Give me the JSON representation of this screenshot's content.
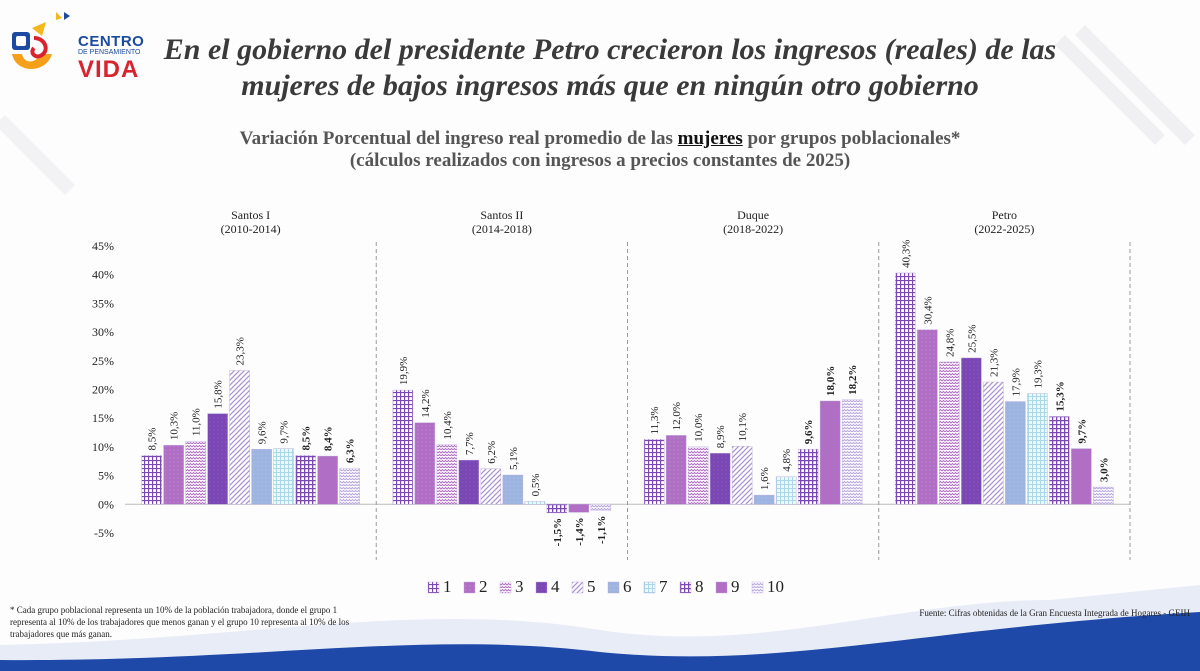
{
  "brand": {
    "line1": "CENTRO",
    "line2": "DE PENSAMIENTO",
    "line3": "VIDA"
  },
  "headline": {
    "line1": "En el gobierno del presidente Petro crecieron los ingresos (reales) de las",
    "line2": "mujeres de bajos ingresos más que en ningún otro gobierno"
  },
  "subtitle": {
    "pre": "Variación Porcentual del ingreso real promedio de las ",
    "emph": "mujeres",
    "post": " por grupos poblacionales*",
    "line2": "(cálculos realizados con ingresos a precios constantes de 2025)"
  },
  "footnote": "* Cada grupo poblacional representa un 10% de la población trabajadora, donde el grupo 1 representa al 10% de los trabajadores que menos ganan y el grupo 10 representa al 10% de los trabajadores que más ganan.",
  "source": "Fuente: Cifras obtenidas de la Gran Encuesta Integrada de Hogares - GEIH",
  "colors": {
    "violet_dark": "#7b47b5",
    "violet_mid": "#b06fc4",
    "violet_light": "#b9a7dc",
    "blue_light": "#9db3e0",
    "cyan_light": "#a9d9e8"
  },
  "chart_data": {
    "type": "bar",
    "ylim": [
      -5,
      45
    ],
    "ytick_labels": [
      "45%",
      "40%",
      "35%",
      "30%",
      "25%",
      "20%",
      "15%",
      "10%",
      "5%",
      "0%",
      "-5%"
    ],
    "yticks": [
      45,
      40,
      35,
      30,
      25,
      20,
      15,
      10,
      5,
      0,
      -5
    ],
    "series_legend": [
      "1",
      "2",
      "3",
      "4",
      "5",
      "6",
      "7",
      "8",
      "9",
      "10"
    ],
    "legend_position": "bottom",
    "groups": [
      {
        "name": "Santos I",
        "period": "(2010-2014)",
        "values": [
          8.5,
          10.3,
          11.0,
          15.8,
          23.3,
          9.6,
          9.7,
          8.5,
          8.4,
          6.3
        ],
        "labels": [
          "8,5%",
          "10,3%",
          "11,0%",
          "15,8%",
          "23,3%",
          "9,6%",
          "9,7%",
          "8,5%",
          "8,4%",
          "6,3%"
        ]
      },
      {
        "name": "Santos II",
        "period": "(2014-2018)",
        "values": [
          19.9,
          14.2,
          10.4,
          7.7,
          6.2,
          5.1,
          0.5,
          -1.5,
          -1.4,
          -1.1
        ],
        "labels": [
          "19,9%",
          "14,2%",
          "10,4%",
          "7,7%",
          "6,2%",
          "5,1%",
          "0,5%",
          "-1,5%",
          "-1,4%",
          "-1,1%"
        ]
      },
      {
        "name": "Duque",
        "period": "(2018-2022)",
        "values": [
          11.3,
          12.0,
          10.0,
          8.9,
          10.1,
          1.6,
          4.8,
          9.6,
          18.0,
          18.2
        ],
        "labels": [
          "11,3%",
          "12,0%",
          "10,0%",
          "8,9%",
          "10,1%",
          "1,6%",
          "4,8%",
          "9,6%",
          "18,0%",
          "18,2%"
        ]
      },
      {
        "name": "Petro",
        "period": "(2022-2025)",
        "values": [
          40.3,
          30.4,
          24.8,
          25.5,
          21.3,
          17.9,
          19.3,
          15.3,
          9.7,
          3.0
        ],
        "labels": [
          "40,3%",
          "30,4%",
          "24,8%",
          "25,5%",
          "21,3%",
          "17,9%",
          "19,3%",
          "15,3%",
          "9,7%",
          "3,0%"
        ]
      }
    ]
  }
}
